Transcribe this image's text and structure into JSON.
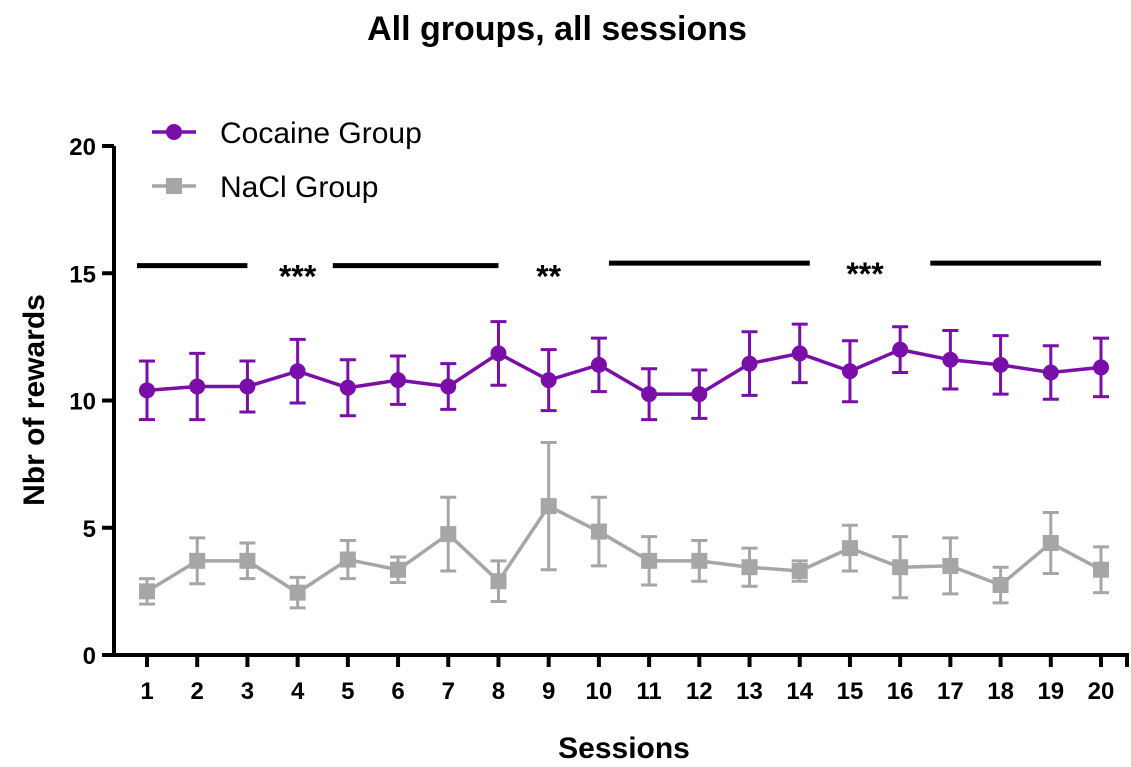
{
  "chart_data": {
    "type": "line",
    "title": "All groups, all sessions",
    "xlabel": "Sessions",
    "ylabel": "Nbr of rewards",
    "x": [
      1,
      2,
      3,
      4,
      5,
      6,
      7,
      8,
      9,
      10,
      11,
      12,
      13,
      14,
      15,
      16,
      17,
      18,
      19,
      20
    ],
    "xlim": [
      1,
      20
    ],
    "ylim": [
      0,
      20
    ],
    "yticks": [
      0,
      5,
      10,
      15,
      20
    ],
    "legend_position": "top-left",
    "grid": false,
    "series": [
      {
        "name": "Cocaine Group",
        "color": "#7a0ea8",
        "marker": "circle",
        "values": [
          10.4,
          10.55,
          10.55,
          11.15,
          10.5,
          10.8,
          10.55,
          11.85,
          10.8,
          11.4,
          10.25,
          10.25,
          11.45,
          11.85,
          11.15,
          12.0,
          11.6,
          11.4,
          11.1,
          11.3
        ],
        "error": [
          1.15,
          1.3,
          1.0,
          1.25,
          1.1,
          0.95,
          0.9,
          1.25,
          1.2,
          1.05,
          1.0,
          0.95,
          1.25,
          1.15,
          1.2,
          0.9,
          1.15,
          1.15,
          1.05,
          1.15
        ]
      },
      {
        "name": "NaCl Group",
        "color": "#a6a6a8",
        "marker": "square",
        "values": [
          2.5,
          3.7,
          3.7,
          2.45,
          3.75,
          3.35,
          4.75,
          2.9,
          5.85,
          4.85,
          3.7,
          3.7,
          3.45,
          3.3,
          4.2,
          3.45,
          3.5,
          2.75,
          4.4,
          3.35
        ],
        "error": [
          0.5,
          0.9,
          0.7,
          0.6,
          0.75,
          0.5,
          1.45,
          0.8,
          2.5,
          1.35,
          0.95,
          0.8,
          0.75,
          0.4,
          0.9,
          1.2,
          1.1,
          0.7,
          1.2,
          0.9
        ]
      }
    ],
    "annotations": [
      {
        "text": "***",
        "x_from": 1,
        "x_to": 8,
        "bars": [
          [
            0.8,
            3.0
          ],
          [
            4.7,
            8.0
          ]
        ],
        "y": 15.3
      },
      {
        "text": "**",
        "x_from": 8,
        "x_to": 10,
        "y": 15.3
      },
      {
        "text": "***",
        "x_from": 10.2,
        "x_to": 20,
        "bars": [
          [
            10.2,
            14.2
          ],
          [
            16.6,
            20.0
          ]
        ],
        "y": 15.4
      }
    ]
  }
}
